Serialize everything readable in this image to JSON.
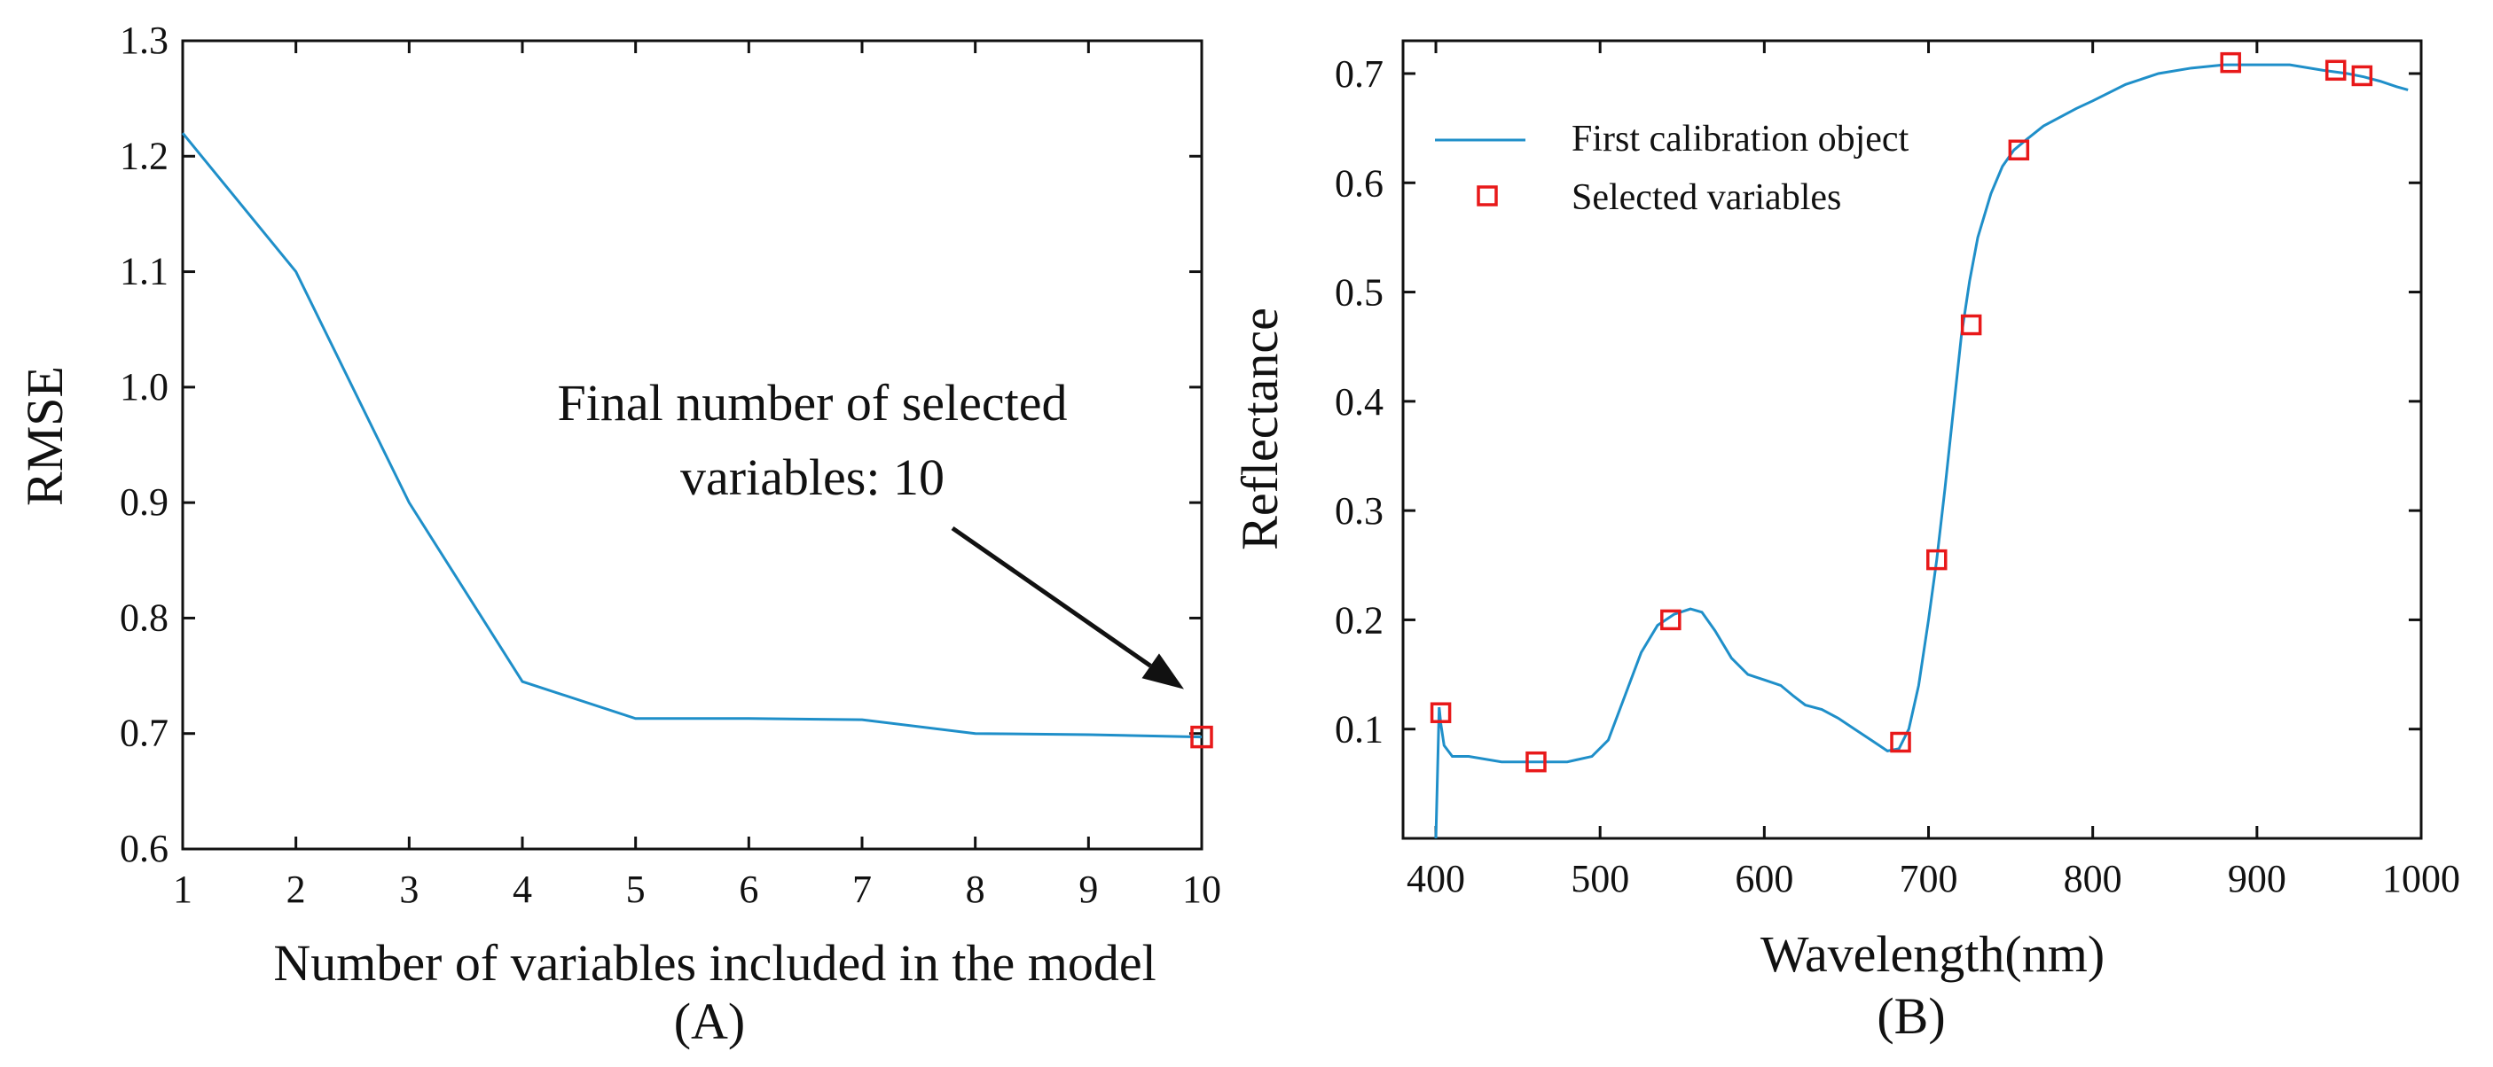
{
  "chart_data": [
    {
      "type": "line",
      "panel": "(A)",
      "xlabel": "Number of variables included in the model",
      "ylabel": "RMSE",
      "xlim": [
        1,
        10
      ],
      "ylim": [
        0.6,
        1.3
      ],
      "xticks": [
        1,
        2,
        3,
        4,
        5,
        6,
        7,
        8,
        9,
        10
      ],
      "yticks": [
        "0.6",
        "0.7",
        "0.8",
        "0.9",
        "1.0",
        "1.1",
        "1.2",
        "1.3"
      ],
      "series": [
        {
          "name": "RMSE",
          "color": "#1f8fc9",
          "x": [
            1,
            2,
            3,
            4,
            5,
            6,
            7,
            8,
            9,
            10
          ],
          "y": [
            1.22,
            1.1,
            0.9,
            0.745,
            0.713,
            0.713,
            0.712,
            0.7,
            0.699,
            0.697
          ]
        }
      ],
      "highlight": {
        "x": 10,
        "y": 0.697,
        "color": "#e8191a"
      },
      "annotation": {
        "lines": [
          "Final number of selected",
          "variables: 10"
        ],
        "arrow_to": {
          "x": 10,
          "y": 0.697
        }
      }
    },
    {
      "type": "line",
      "panel": "(B)",
      "xlabel": "Wavelength(nm)",
      "ylabel": "Reflectance",
      "xlim": [
        380,
        1000
      ],
      "ylim": [
        0,
        0.73
      ],
      "xticks": [
        400,
        500,
        600,
        700,
        800,
        900,
        1000
      ],
      "yticks": [
        "0.1",
        "0.2",
        "0.3",
        "0.4",
        "0.5",
        "0.6",
        "0.7"
      ],
      "series": [
        {
          "name": "First calibration object",
          "color": "#1f8fc9",
          "x": [
            400,
            401,
            402,
            403,
            405,
            410,
            420,
            440,
            460,
            480,
            495,
            505,
            515,
            525,
            535,
            545,
            555,
            562,
            570,
            580,
            590,
            600,
            610,
            618,
            625,
            635,
            645,
            655,
            665,
            675,
            682,
            688,
            694,
            700,
            705,
            710,
            715,
            720,
            725,
            730,
            738,
            745,
            752,
            760,
            770,
            780,
            790,
            800,
            820,
            840,
            860,
            880,
            900,
            920,
            940,
            955,
            965,
            975,
            985,
            992
          ],
          "y": [
            0.0,
            0.06,
            0.12,
            0.105,
            0.085,
            0.075,
            0.075,
            0.07,
            0.07,
            0.07,
            0.075,
            0.09,
            0.13,
            0.17,
            0.195,
            0.205,
            0.21,
            0.207,
            0.19,
            0.165,
            0.15,
            0.145,
            0.14,
            0.13,
            0.122,
            0.118,
            0.11,
            0.1,
            0.09,
            0.08,
            0.082,
            0.1,
            0.14,
            0.2,
            0.255,
            0.32,
            0.39,
            0.46,
            0.51,
            0.55,
            0.59,
            0.615,
            0.63,
            0.64,
            0.652,
            0.66,
            0.668,
            0.675,
            0.69,
            0.7,
            0.705,
            0.708,
            0.708,
            0.708,
            0.703,
            0.7,
            0.697,
            0.693,
            0.688,
            0.685
          ]
        },
        {
          "name": "Selected variables",
          "color": "#e8191a",
          "x": [
            403,
            461,
            543,
            683,
            705,
            726,
            755,
            884,
            948,
            964
          ],
          "y": [
            0.115,
            0.07,
            0.2,
            0.088,
            0.255,
            0.47,
            0.63,
            0.71,
            0.703,
            0.698
          ]
        }
      ]
    }
  ]
}
